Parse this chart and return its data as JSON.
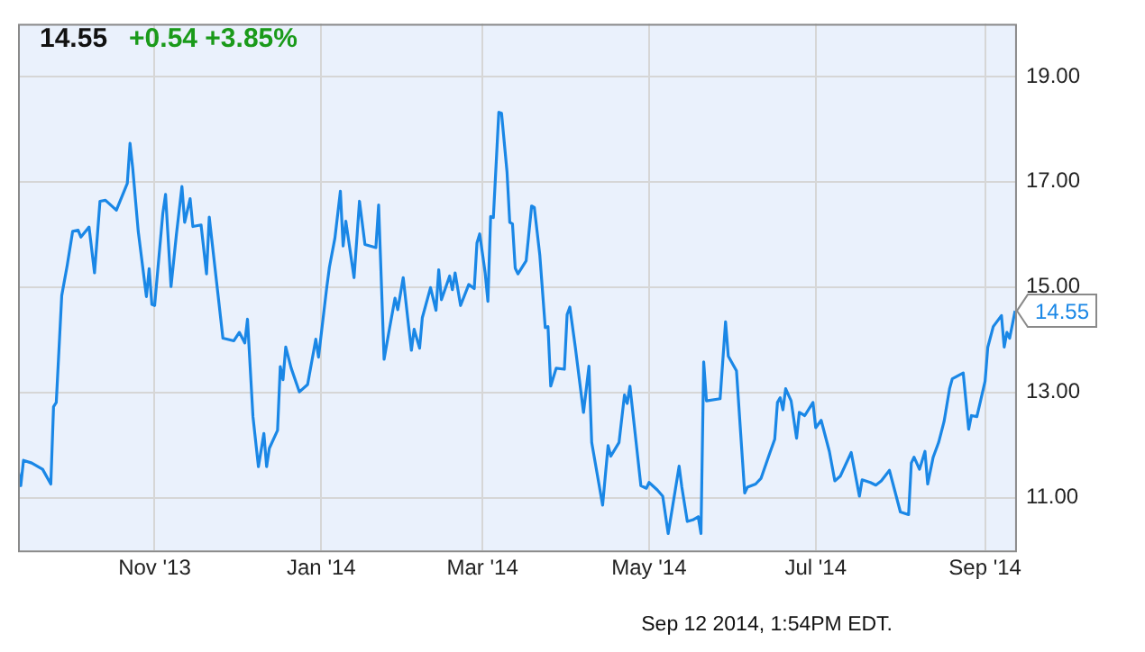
{
  "chart_data": {
    "type": "line",
    "title": "14.55",
    "subtitle": "+0.54 +3.85%",
    "annotations": [
      {
        "text": "14.55",
        "x": "2014-09-12",
        "y": 14.55
      },
      "Sep 12 2014, 1:54PM EDT."
    ],
    "x": [
      "2013-09-12",
      "2013-09-13",
      "2013-09-14",
      "2013-09-17",
      "2013-09-21",
      "2013-09-24",
      "2013-09-25",
      "2013-09-26",
      "2013-09-28",
      "2013-09-30",
      "2013-10-02",
      "2013-10-04",
      "2013-10-05",
      "2013-10-08",
      "2013-10-10",
      "2013-10-12",
      "2013-10-14",
      "2013-10-18",
      "2013-10-22",
      "2013-10-23",
      "2013-10-24",
      "2013-10-26",
      "2013-10-29",
      "2013-10-30",
      "2013-10-31",
      "2013-11-01",
      "2013-11-04",
      "2013-11-05",
      "2013-11-07",
      "2013-11-09",
      "2013-11-11",
      "2013-11-12",
      "2013-11-14",
      "2013-11-15",
      "2013-11-18",
      "2013-11-20",
      "2013-11-21",
      "2013-11-26",
      "2013-11-30",
      "2013-12-02",
      "2013-12-04",
      "2013-12-05",
      "2013-12-07",
      "2013-12-09",
      "2013-12-11",
      "2013-12-12",
      "2013-12-13",
      "2013-12-16",
      "2013-12-17",
      "2013-12-18",
      "2013-12-19",
      "2013-12-21",
      "2013-12-24",
      "2013-12-27",
      "2013-12-30",
      "2013-12-31",
      "2014-01-03",
      "2014-01-04",
      "2014-01-06",
      "2014-01-08",
      "2014-01-09",
      "2014-01-10",
      "2014-01-13",
      "2014-01-15",
      "2014-01-17",
      "2014-01-21",
      "2014-01-22",
      "2014-01-24",
      "2014-01-26",
      "2014-01-28",
      "2014-01-29",
      "2014-01-31",
      "2014-02-02",
      "2014-02-03",
      "2014-02-04",
      "2014-02-06",
      "2014-02-07",
      "2014-02-10",
      "2014-02-12",
      "2014-02-13",
      "2014-02-14",
      "2014-02-17",
      "2014-02-18",
      "2014-02-19",
      "2014-02-21",
      "2014-02-24",
      "2014-02-26",
      "2014-02-27",
      "2014-02-28",
      "2014-03-02",
      "2014-03-03",
      "2014-03-04",
      "2014-03-05",
      "2014-03-07",
      "2014-03-08",
      "2014-03-10",
      "2014-03-11",
      "2014-03-12",
      "2014-03-13",
      "2014-03-14",
      "2014-03-17",
      "2014-03-19",
      "2014-03-20",
      "2014-03-22",
      "2014-03-24",
      "2014-03-25",
      "2014-03-26",
      "2014-03-28",
      "2014-03-31",
      "2014-04-01",
      "2014-04-02",
      "2014-04-04",
      "2014-04-07",
      "2014-04-09",
      "2014-04-10",
      "2014-04-14",
      "2014-04-16",
      "2014-04-17",
      "2014-04-20",
      "2014-04-22",
      "2014-04-23",
      "2014-04-24",
      "2014-04-28",
      "2014-04-30",
      "2014-05-01",
      "2014-05-04",
      "2014-05-06",
      "2014-05-08",
      "2014-05-12",
      "2014-05-13",
      "2014-05-15",
      "2014-05-17",
      "2014-05-19",
      "2014-05-20",
      "2014-05-21",
      "2014-05-22",
      "2014-05-27",
      "2014-05-29",
      "2014-05-30",
      "2014-06-02",
      "2014-06-05",
      "2014-06-06",
      "2014-06-09",
      "2014-06-11",
      "2014-06-14",
      "2014-06-16",
      "2014-06-17",
      "2014-06-18",
      "2014-06-19",
      "2014-06-20",
      "2014-06-22",
      "2014-06-24",
      "2014-06-25",
      "2014-06-27",
      "2014-06-30",
      "2014-07-01",
      "2014-07-03",
      "2014-07-06",
      "2014-07-08",
      "2014-07-10",
      "2014-07-14",
      "2014-07-17",
      "2014-07-18",
      "2014-07-21",
      "2014-07-23",
      "2014-07-25",
      "2014-07-28",
      "2014-07-29",
      "2014-08-01",
      "2014-08-04",
      "2014-08-05",
      "2014-08-06",
      "2014-08-08",
      "2014-08-10",
      "2014-08-11",
      "2014-08-13",
      "2014-08-15",
      "2014-08-17",
      "2014-08-19",
      "2014-08-20",
      "2014-08-24",
      "2014-08-26",
      "2014-08-27",
      "2014-08-29",
      "2014-09-01",
      "2014-09-02",
      "2014-09-04",
      "2014-09-07",
      "2014-09-08",
      "2014-09-09",
      "2014-09-10",
      "2014-09-12"
    ],
    "series": [
      {
        "color": "#1a87e6",
        "values": [
          11.54,
          11.23,
          11.71,
          11.66,
          11.54,
          11.26,
          12.73,
          12.81,
          14.84,
          15.41,
          16.06,
          16.08,
          15.95,
          16.14,
          15.27,
          16.63,
          16.65,
          16.46,
          16.97,
          17.73,
          17.25,
          16.06,
          14.82,
          15.35,
          14.67,
          14.65,
          16.4,
          16.76,
          15.01,
          16.01,
          16.91,
          16.23,
          16.68,
          16.15,
          16.18,
          15.25,
          16.33,
          14.03,
          13.98,
          14.14,
          13.94,
          14.39,
          12.54,
          11.59,
          12.22,
          11.59,
          11.94,
          12.28,
          13.49,
          13.24,
          13.86,
          13.46,
          13.01,
          13.15,
          14.01,
          13.67,
          14.99,
          15.38,
          15.93,
          16.82,
          15.78,
          16.25,
          15.18,
          16.63,
          15.81,
          15.75,
          16.56,
          13.63,
          14.22,
          14.79,
          14.57,
          15.18,
          14.25,
          13.8,
          14.2,
          13.84,
          14.42,
          14.99,
          14.56,
          15.33,
          14.76,
          15.21,
          14.95,
          15.27,
          14.65,
          15.05,
          14.97,
          15.84,
          16.01,
          15.27,
          14.73,
          16.34,
          16.32,
          18.32,
          18.3,
          17.19,
          16.23,
          16.2,
          15.36,
          15.25,
          15.5,
          16.54,
          16.51,
          15.61,
          14.23,
          14.25,
          13.12,
          13.46,
          13.44,
          14.48,
          14.62,
          13.86,
          12.62,
          13.5,
          12.05,
          10.86,
          11.99,
          11.79,
          12.05,
          12.95,
          12.79,
          13.12,
          11.23,
          11.18,
          11.29,
          11.15,
          11.03,
          10.32,
          11.6,
          11.2,
          10.55,
          10.58,
          10.64,
          10.32,
          13.58,
          12.84,
          12.88,
          14.34,
          13.69,
          13.41,
          11.09,
          11.2,
          11.26,
          11.37,
          11.82,
          12.11,
          12.81,
          12.9,
          12.67,
          13.07,
          12.84,
          12.13,
          12.62,
          12.56,
          12.81,
          12.33,
          12.47,
          11.88,
          11.32,
          11.41,
          11.86,
          11.03,
          11.34,
          11.29,
          11.24,
          11.32,
          11.52,
          11.32,
          10.73,
          10.68,
          11.66,
          11.77,
          11.54,
          11.88,
          11.26,
          11.77,
          12.05,
          12.45,
          13.07,
          13.26,
          13.37,
          12.3,
          12.56,
          12.54,
          13.21,
          13.86,
          14.25,
          14.46,
          13.86,
          14.14,
          14.03,
          14.55
        ]
      }
    ],
    "xlim": [
      "2013-09-12",
      "2014-09-12"
    ],
    "xticks": [
      {
        "value": "2013-11-01",
        "label": "Nov '13"
      },
      {
        "value": "2014-01-01",
        "label": "Jan '14"
      },
      {
        "value": "2014-03-01",
        "label": "Mar '14"
      },
      {
        "value": "2014-05-01",
        "label": "May '14"
      },
      {
        "value": "2014-07-01",
        "label": "Jul '14"
      },
      {
        "value": "2014-09-01",
        "label": "Sep '14"
      }
    ],
    "ylim": [
      10,
      20
    ],
    "yticks": [
      {
        "value": 11,
        "label": "11.00"
      },
      {
        "value": 13,
        "label": "13.00"
      },
      {
        "value": 15,
        "label": "15.00"
      },
      {
        "value": 17,
        "label": "17.00"
      },
      {
        "value": 19,
        "label": "19.00"
      }
    ],
    "grid": true
  }
}
